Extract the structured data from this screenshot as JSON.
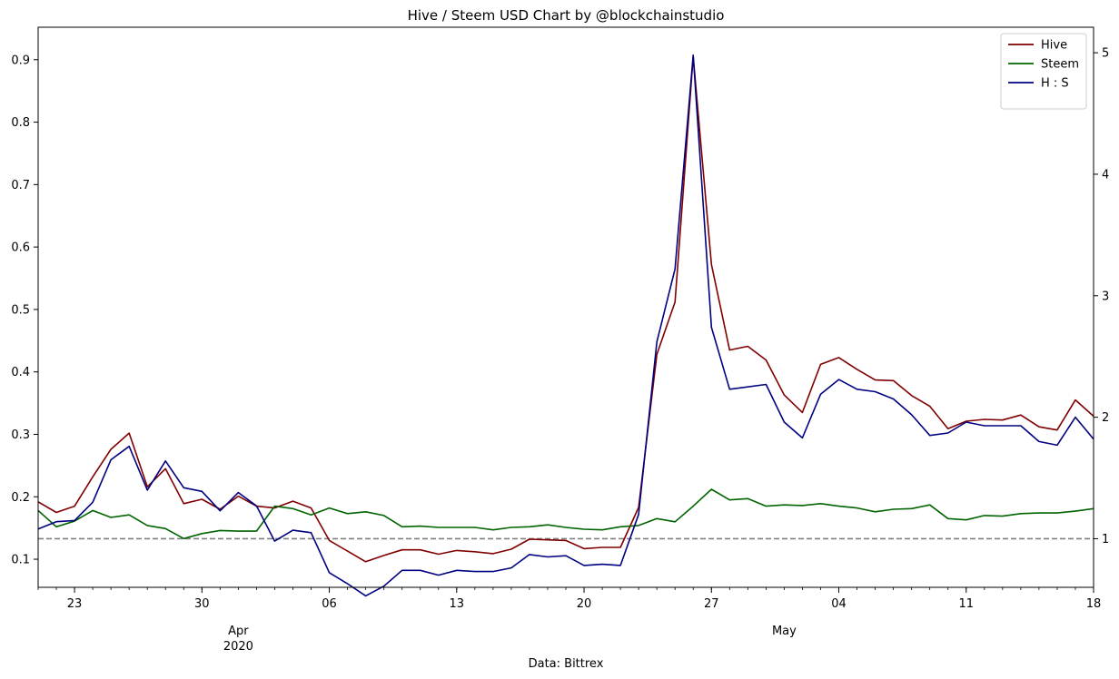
{
  "chart_data": {
    "type": "line",
    "title": "Hive / Steem USD Chart by @blockchainstudio",
    "xlabel": "Data: Bittrex",
    "x_start": "2020-03-21",
    "x_end": "2020-05-18",
    "x_ticks": [
      {
        "date": "2020-03-23",
        "label": "23"
      },
      {
        "date": "2020-03-30",
        "label": "30"
      },
      {
        "date": "2020-04-06",
        "label": "06"
      },
      {
        "date": "2020-04-13",
        "label": "13"
      },
      {
        "date": "2020-04-20",
        "label": "20"
      },
      {
        "date": "2020-04-27",
        "label": "27"
      },
      {
        "date": "2020-05-04",
        "label": "04"
      },
      {
        "date": "2020-05-11",
        "label": "11"
      },
      {
        "date": "2020-05-18",
        "label": "18"
      }
    ],
    "month_labels": [
      {
        "date": "2020-04-01",
        "label": "Apr",
        "sublabel": "2020"
      },
      {
        "date": "2020-05-01",
        "label": "May",
        "sublabel": ""
      }
    ],
    "y_left": {
      "ticks": [
        0.1,
        0.2,
        0.3,
        0.4,
        0.5,
        0.6,
        0.7,
        0.8,
        0.9
      ],
      "tick_labels": [
        "0.1",
        "0.2",
        "0.3",
        "0.4",
        "0.5",
        "0.6",
        "0.7",
        "0.8",
        "0.9"
      ],
      "ylim": [
        0.055,
        0.952
      ]
    },
    "y_right": {
      "ticks": [
        1,
        2,
        3,
        4,
        5
      ],
      "tick_labels": [
        "1",
        "2",
        "3",
        "4",
        "5"
      ],
      "ylim": [
        0.6,
        5.21
      ]
    },
    "reference_line": {
      "axis": "right",
      "value": 1,
      "color": "#808080",
      "style": "dashed"
    },
    "legend_placement": "top-right",
    "colors": {
      "hive": "#800000",
      "steem": "#006400",
      "ratio": "#000080"
    },
    "series": [
      {
        "name": "Hive",
        "axis": "left",
        "color": "#800000",
        "x": [
          "2020-03-21",
          "2020-03-22",
          "2020-03-23",
          "2020-03-24",
          "2020-03-25",
          "2020-03-26",
          "2020-03-27",
          "2020-03-28",
          "2020-03-29",
          "2020-03-30",
          "2020-03-31",
          "2020-04-01",
          "2020-04-02",
          "2020-04-03",
          "2020-04-04",
          "2020-04-05",
          "2020-04-06",
          "2020-04-07",
          "2020-04-08",
          "2020-04-09",
          "2020-04-10",
          "2020-04-11",
          "2020-04-12",
          "2020-04-13",
          "2020-04-14",
          "2020-04-15",
          "2020-04-16",
          "2020-04-17",
          "2020-04-18",
          "2020-04-19",
          "2020-04-20",
          "2020-04-21",
          "2020-04-22",
          "2020-04-23",
          "2020-04-24",
          "2020-04-25",
          "2020-04-26",
          "2020-04-27",
          "2020-04-28",
          "2020-04-29",
          "2020-04-30",
          "2020-05-01",
          "2020-05-02",
          "2020-05-03",
          "2020-05-04",
          "2020-05-05",
          "2020-05-06",
          "2020-05-07",
          "2020-05-08",
          "2020-05-09",
          "2020-05-10",
          "2020-05-11",
          "2020-05-12",
          "2020-05-13",
          "2020-05-14",
          "2020-05-15",
          "2020-05-16",
          "2020-05-17",
          "2020-05-18"
        ],
        "values": [
          0.192,
          0.175,
          0.185,
          0.232,
          0.276,
          0.302,
          0.216,
          0.245,
          0.189,
          0.196,
          0.18,
          0.201,
          0.185,
          0.182,
          0.193,
          0.182,
          0.13,
          0.113,
          0.096,
          0.106,
          0.115,
          0.115,
          0.108,
          0.114,
          0.112,
          0.109,
          0.116,
          0.132,
          0.131,
          0.13,
          0.117,
          0.119,
          0.119,
          0.183,
          0.428,
          0.512,
          0.905,
          0.572,
          0.435,
          0.441,
          0.419,
          0.363,
          0.335,
          0.412,
          0.423,
          0.404,
          0.387,
          0.386,
          0.362,
          0.345,
          0.309,
          0.321,
          0.324,
          0.323,
          0.331,
          0.312,
          0.307,
          0.355,
          0.329
        ]
      },
      {
        "name": "Steem",
        "axis": "left",
        "color": "#006400",
        "x": [
          "2020-03-21",
          "2020-03-22",
          "2020-03-23",
          "2020-03-24",
          "2020-03-25",
          "2020-03-26",
          "2020-03-27",
          "2020-03-28",
          "2020-03-29",
          "2020-03-30",
          "2020-03-31",
          "2020-04-01",
          "2020-04-02",
          "2020-04-03",
          "2020-04-04",
          "2020-04-05",
          "2020-04-06",
          "2020-04-07",
          "2020-04-08",
          "2020-04-09",
          "2020-04-10",
          "2020-04-11",
          "2020-04-12",
          "2020-04-13",
          "2020-04-14",
          "2020-04-15",
          "2020-04-16",
          "2020-04-17",
          "2020-04-18",
          "2020-04-19",
          "2020-04-20",
          "2020-04-21",
          "2020-04-22",
          "2020-04-23",
          "2020-04-24",
          "2020-04-25",
          "2020-04-26",
          "2020-04-27",
          "2020-04-28",
          "2020-04-29",
          "2020-04-30",
          "2020-05-01",
          "2020-05-02",
          "2020-05-03",
          "2020-05-04",
          "2020-05-05",
          "2020-05-06",
          "2020-05-07",
          "2020-05-08",
          "2020-05-09",
          "2020-05-10",
          "2020-05-11",
          "2020-05-12",
          "2020-05-13",
          "2020-05-14",
          "2020-05-15",
          "2020-05-16",
          "2020-05-17",
          "2020-05-18"
        ],
        "values": [
          0.178,
          0.152,
          0.161,
          0.178,
          0.167,
          0.171,
          0.154,
          0.149,
          0.133,
          0.141,
          0.146,
          0.145,
          0.145,
          0.185,
          0.181,
          0.171,
          0.182,
          0.173,
          0.176,
          0.17,
          0.152,
          0.153,
          0.151,
          0.151,
          0.151,
          0.147,
          0.151,
          0.152,
          0.155,
          0.151,
          0.148,
          0.147,
          0.152,
          0.154,
          0.165,
          0.16,
          0.185,
          0.212,
          0.195,
          0.197,
          0.185,
          0.187,
          0.186,
          0.189,
          0.185,
          0.182,
          0.176,
          0.18,
          0.181,
          0.187,
          0.165,
          0.163,
          0.17,
          0.169,
          0.173,
          0.174,
          0.174,
          0.177,
          0.181
        ]
      },
      {
        "name": "H : S",
        "axis": "right",
        "color": "#000080",
        "x": [
          "2020-03-21",
          "2020-03-22",
          "2020-03-23",
          "2020-03-24",
          "2020-03-25",
          "2020-03-26",
          "2020-03-27",
          "2020-03-28",
          "2020-03-29",
          "2020-03-30",
          "2020-03-31",
          "2020-04-01",
          "2020-04-02",
          "2020-04-03",
          "2020-04-04",
          "2020-04-05",
          "2020-04-06",
          "2020-04-07",
          "2020-04-08",
          "2020-04-09",
          "2020-04-10",
          "2020-04-11",
          "2020-04-12",
          "2020-04-13",
          "2020-04-14",
          "2020-04-15",
          "2020-04-16",
          "2020-04-17",
          "2020-04-18",
          "2020-04-19",
          "2020-04-20",
          "2020-04-21",
          "2020-04-22",
          "2020-04-23",
          "2020-04-24",
          "2020-04-25",
          "2020-04-26",
          "2020-04-27",
          "2020-04-28",
          "2020-04-29",
          "2020-04-30",
          "2020-05-01",
          "2020-05-02",
          "2020-05-03",
          "2020-05-04",
          "2020-05-05",
          "2020-05-06",
          "2020-05-07",
          "2020-05-08",
          "2020-05-09",
          "2020-05-10",
          "2020-05-11",
          "2020-05-12",
          "2020-05-13",
          "2020-05-14",
          "2020-05-15",
          "2020-05-16",
          "2020-05-17",
          "2020-05-18"
        ],
        "values": [
          1.08,
          1.14,
          1.15,
          1.3,
          1.65,
          1.76,
          1.4,
          1.64,
          1.42,
          1.39,
          1.23,
          1.38,
          1.27,
          0.98,
          1.07,
          1.05,
          0.72,
          0.63,
          0.53,
          0.61,
          0.74,
          0.74,
          0.7,
          0.74,
          0.73,
          0.73,
          0.76,
          0.87,
          0.85,
          0.86,
          0.78,
          0.79,
          0.78,
          1.2,
          2.62,
          3.22,
          4.98,
          2.74,
          2.23,
          2.25,
          2.27,
          1.96,
          1.83,
          2.19,
          2.31,
          2.23,
          2.21,
          2.15,
          2.02,
          1.85,
          1.87,
          1.96,
          1.93,
          1.93,
          1.93,
          1.8,
          1.77,
          2.0,
          1.82
        ]
      }
    ]
  }
}
